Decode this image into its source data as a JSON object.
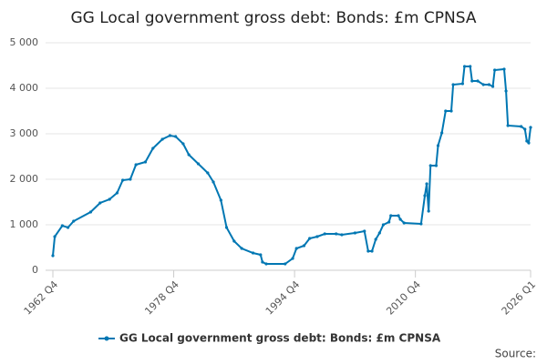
{
  "chart_data": {
    "type": "line",
    "title": "GG Local government gross debt: Bonds: £m CPNSA",
    "source": "Source:",
    "xlim": [
      1962.75,
      2026.0
    ],
    "xticks": [
      {
        "value": 1962.75,
        "label": "1962 Q4"
      },
      {
        "value": 1978.75,
        "label": "1978 Q4"
      },
      {
        "value": 1994.75,
        "label": "1994 Q4"
      },
      {
        "value": 2010.75,
        "label": "2010 Q4"
      },
      {
        "value": 2026.0,
        "label": "2026 Q1"
      }
    ],
    "ylim": [
      0,
      5000
    ],
    "yticks": [
      0,
      {
        "value": 1000,
        "label": "1 000"
      },
      {
        "value": 2000,
        "label": "2 000"
      },
      {
        "value": 3000,
        "label": "3 000"
      },
      {
        "value": 4000,
        "label": "4 000"
      },
      {
        "value": 5000,
        "label": "5 000"
      }
    ],
    "grid": true,
    "x": [
      1962.75,
      1963.0,
      1964.0,
      1964.75,
      1965.5,
      1967.75,
      1969.0,
      1970.25,
      1971.25,
      1972.0,
      1973.0,
      1973.75,
      1975.0,
      1976.0,
      1977.25,
      1978.25,
      1979.0,
      1980.0,
      1980.75,
      1982.0,
      1983.25,
      1984.0,
      1985.0,
      1985.75,
      1986.75,
      1987.75,
      1989.25,
      1990.25,
      1990.5,
      1991.0,
      1993.5,
      1994.5,
      1995.0,
      1996.0,
      1996.75,
      1997.75,
      1998.75,
      2000.25,
      2001.0,
      2002.75,
      2004.0,
      2004.5,
      2005.0,
      2005.5,
      2006.0,
      2006.5,
      2007.25,
      2007.5,
      2008.5,
      2008.75,
      2009.25,
      2011.5,
      2012.0,
      2012.25,
      2012.5,
      2012.75,
      2013.5,
      2013.75,
      2014.25,
      2014.75,
      2015.5,
      2015.75,
      2017.0,
      2017.25,
      2018.0,
      2018.25,
      2019.0,
      2019.75,
      2020.5,
      2021.0,
      2021.25,
      2022.5,
      2022.75,
      2023.0,
      2024.75,
      2025.25,
      2025.5,
      2025.75,
      2026.0
    ],
    "series": [
      {
        "name": "GG Local government gross debt: Bonds: £m CPNSA",
        "color": "#0077b3",
        "values": [
          320,
          740,
          980,
          940,
          1080,
          1280,
          1480,
          1560,
          1700,
          1980,
          2000,
          2320,
          2380,
          2680,
          2880,
          2960,
          2940,
          2780,
          2540,
          2340,
          2140,
          1940,
          1540,
          940,
          640,
          480,
          380,
          340,
          180,
          140,
          140,
          260,
          480,
          540,
          700,
          740,
          800,
          800,
          780,
          820,
          860,
          420,
          420,
          680,
          820,
          1000,
          1060,
          1200,
          1200,
          1120,
          1040,
          1020,
          1640,
          1900,
          1300,
          2300,
          2300,
          2740,
          3020,
          3500,
          3500,
          4080,
          4100,
          4480,
          4480,
          4160,
          4160,
          4080,
          4080,
          4040,
          4400,
          4420,
          3940,
          3180,
          3160,
          3100,
          2840,
          2800,
          3140
        ]
      }
    ]
  }
}
